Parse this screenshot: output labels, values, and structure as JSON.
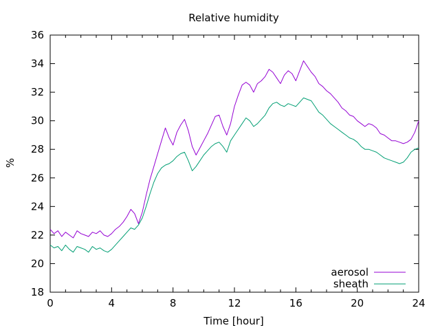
{
  "chart_data": {
    "type": "line",
    "title": "Relative humidity",
    "xlabel": "Time [hour]",
    "ylabel": "%",
    "xlim": [
      0,
      24
    ],
    "ylim": [
      18,
      36
    ],
    "x_ticks": [
      0,
      4,
      8,
      12,
      16,
      20,
      24
    ],
    "y_ticks": [
      18,
      20,
      22,
      24,
      26,
      28,
      30,
      32,
      34,
      36
    ],
    "grid": false,
    "legend_position": "bottom-right",
    "series": [
      {
        "name": "aerosol",
        "color": "#9400d3",
        "x": [
          0,
          0.25,
          0.5,
          0.75,
          1,
          1.25,
          1.5,
          1.75,
          2,
          2.25,
          2.5,
          2.75,
          3,
          3.25,
          3.5,
          3.75,
          4,
          4.25,
          4.5,
          4.75,
          5,
          5.25,
          5.5,
          5.75,
          6,
          6.25,
          6.5,
          6.75,
          7,
          7.25,
          7.5,
          7.75,
          8,
          8.25,
          8.5,
          8.75,
          9,
          9.25,
          9.5,
          9.75,
          10,
          10.25,
          10.5,
          10.75,
          11,
          11.25,
          11.5,
          11.75,
          12,
          12.25,
          12.5,
          12.75,
          13,
          13.25,
          13.5,
          13.75,
          14,
          14.25,
          14.5,
          14.75,
          15,
          15.25,
          15.5,
          15.75,
          16,
          16.25,
          16.5,
          16.75,
          17,
          17.25,
          17.5,
          17.75,
          18,
          18.25,
          18.5,
          18.75,
          19,
          19.25,
          19.5,
          19.75,
          20,
          20.25,
          20.5,
          20.75,
          21,
          21.25,
          21.5,
          21.75,
          22,
          22.25,
          22.5,
          22.75,
          23,
          23.25,
          23.5,
          23.75,
          24
        ],
        "values": [
          22.4,
          22.1,
          22.3,
          21.9,
          22.2,
          22.0,
          21.8,
          22.3,
          22.1,
          22.0,
          21.9,
          22.2,
          22.1,
          22.3,
          22.0,
          21.9,
          22.1,
          22.4,
          22.6,
          22.9,
          23.3,
          23.8,
          23.5,
          22.8,
          23.6,
          24.8,
          25.9,
          26.8,
          27.7,
          28.6,
          29.5,
          28.8,
          28.3,
          29.2,
          29.7,
          30.1,
          29.3,
          28.2,
          27.6,
          28.1,
          28.6,
          29.1,
          29.7,
          30.3,
          30.4,
          29.6,
          29.0,
          29.8,
          31.0,
          31.8,
          32.5,
          32.7,
          32.5,
          32.0,
          32.6,
          32.8,
          33.1,
          33.6,
          33.4,
          33.0,
          32.6,
          33.2,
          33.5,
          33.3,
          32.8,
          33.5,
          34.2,
          33.8,
          33.4,
          33.1,
          32.6,
          32.4,
          32.1,
          31.9,
          31.6,
          31.3,
          30.9,
          30.7,
          30.4,
          30.3,
          30.0,
          29.8,
          29.6,
          29.8,
          29.7,
          29.5,
          29.1,
          29.0,
          28.8,
          28.6,
          28.6,
          28.5,
          28.4,
          28.5,
          28.7,
          29.2,
          30.0
        ]
      },
      {
        "name": "sheath",
        "color": "#009e73",
        "x": [
          0,
          0.25,
          0.5,
          0.75,
          1,
          1.25,
          1.5,
          1.75,
          2,
          2.25,
          2.5,
          2.75,
          3,
          3.25,
          3.5,
          3.75,
          4,
          4.25,
          4.5,
          4.75,
          5,
          5.25,
          5.5,
          5.75,
          6,
          6.25,
          6.5,
          6.75,
          7,
          7.25,
          7.5,
          7.75,
          8,
          8.25,
          8.5,
          8.75,
          9,
          9.25,
          9.5,
          9.75,
          10,
          10.25,
          10.5,
          10.75,
          11,
          11.25,
          11.5,
          11.75,
          12,
          12.25,
          12.5,
          12.75,
          13,
          13.25,
          13.5,
          13.75,
          14,
          14.25,
          14.5,
          14.75,
          15,
          15.25,
          15.5,
          15.75,
          16,
          16.25,
          16.5,
          16.75,
          17,
          17.25,
          17.5,
          17.75,
          18,
          18.25,
          18.5,
          18.75,
          19,
          19.25,
          19.5,
          19.75,
          20,
          20.25,
          20.5,
          20.75,
          21,
          21.25,
          21.5,
          21.75,
          22,
          22.25,
          22.5,
          22.75,
          23,
          23.25,
          23.5,
          23.75,
          24
        ],
        "values": [
          21.3,
          21.1,
          21.2,
          20.9,
          21.3,
          21.0,
          20.8,
          21.2,
          21.1,
          21.0,
          20.8,
          21.2,
          21.0,
          21.1,
          20.9,
          20.8,
          21.0,
          21.3,
          21.6,
          21.9,
          22.2,
          22.5,
          22.4,
          22.7,
          23.2,
          24.0,
          24.9,
          25.7,
          26.3,
          26.7,
          26.9,
          27.0,
          27.2,
          27.5,
          27.7,
          27.8,
          27.2,
          26.5,
          26.8,
          27.2,
          27.6,
          27.9,
          28.2,
          28.4,
          28.5,
          28.2,
          27.8,
          28.6,
          29.0,
          29.4,
          29.8,
          30.2,
          30.0,
          29.6,
          29.8,
          30.1,
          30.4,
          30.9,
          31.2,
          31.3,
          31.1,
          31.0,
          31.2,
          31.1,
          31.0,
          31.3,
          31.6,
          31.5,
          31.4,
          31.0,
          30.6,
          30.4,
          30.1,
          29.8,
          29.6,
          29.4,
          29.2,
          29.0,
          28.8,
          28.7,
          28.5,
          28.2,
          28.0,
          28.0,
          27.9,
          27.8,
          27.6,
          27.4,
          27.3,
          27.2,
          27.1,
          27.0,
          27.1,
          27.4,
          27.8,
          28.0,
          28.1
        ]
      }
    ]
  }
}
